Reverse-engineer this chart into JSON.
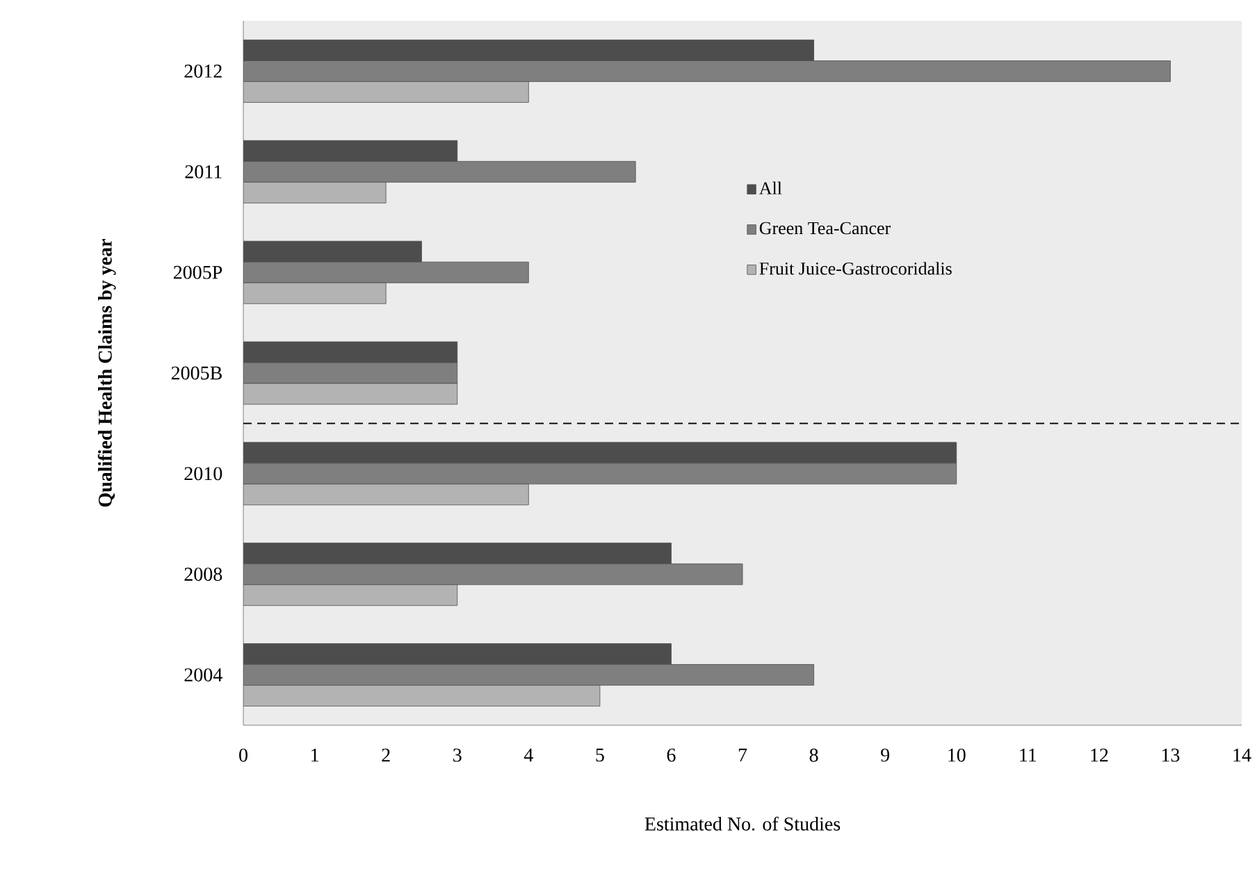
{
  "chart_data": {
    "type": "bar",
    "orientation": "horizontal",
    "xlabel": "Estimated No. of Studies",
    "ylabel": "Qualified Health Claims by year",
    "categories": [
      "2012",
      "2011",
      "2005P",
      "2005B",
      "2010",
      "2008",
      "2004"
    ],
    "series": [
      {
        "name": "All",
        "color": "#4d4d4d",
        "values": [
          8,
          3,
          2.5,
          3,
          10,
          6,
          6
        ]
      },
      {
        "name": "Green Tea-Cancer",
        "color": "#7f7f7f",
        "values": [
          13,
          5.5,
          4,
          3,
          10,
          7,
          8
        ]
      },
      {
        "name": "Fruit Juice-Gastrocoridalis",
        "color": "#b3b3b3",
        "values": [
          4,
          2,
          2,
          3,
          4,
          3,
          5
        ]
      }
    ],
    "xlim": [
      0,
      14
    ],
    "xticks": [
      0,
      1,
      2,
      3,
      4,
      5,
      6,
      7,
      8,
      9,
      10,
      11,
      12,
      13,
      14
    ],
    "legend": "right",
    "grid": false
  }
}
